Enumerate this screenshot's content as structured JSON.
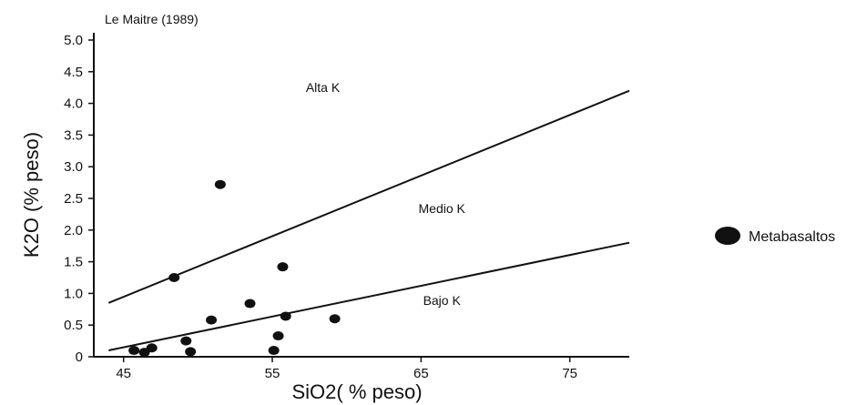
{
  "chart_data": {
    "type": "scatter",
    "source_label": "Le Maitre (1989)",
    "xlabel": "SiO2( % peso)",
    "ylabel": "K2O (% peso)",
    "xlim": [
      43,
      79
    ],
    "ylim": [
      0,
      5.0
    ],
    "x_ticks": [
      45,
      55,
      65,
      75
    ],
    "y_ticks": [
      {
        "value": 0,
        "label": "0"
      },
      {
        "value": 0.5,
        "label": "0.5"
      },
      {
        "value": 1.0,
        "label": "1.0"
      },
      {
        "value": 1.5,
        "label": "1.5"
      },
      {
        "value": 2.0,
        "label": "2.0"
      },
      {
        "value": 2.5,
        "label": "2.5"
      },
      {
        "value": 3.0,
        "label": "3.0"
      },
      {
        "value": 3.5,
        "label": "3.5"
      },
      {
        "value": 4.0,
        "label": "4.0"
      },
      {
        "value": 4.5,
        "label": "4.5"
      },
      {
        "value": 5.0,
        "label": "5.0"
      }
    ],
    "boundaries": [
      {
        "x": [
          44,
          79
        ],
        "y": [
          0.1,
          1.8
        ]
      },
      {
        "x": [
          44,
          79
        ],
        "y": [
          0.85,
          4.2
        ]
      }
    ],
    "regions": [
      {
        "label": "Alta K",
        "x": 58.4,
        "y": 4.18
      },
      {
        "label": "Medio K",
        "x": 66.4,
        "y": 2.27
      },
      {
        "label": "Bajo K",
        "x": 66.4,
        "y": 0.82
      }
    ],
    "series": [
      {
        "name": "Metabasaltos",
        "points": [
          [
            45.7,
            0.1
          ],
          [
            46.4,
            0.07
          ],
          [
            46.9,
            0.14
          ],
          [
            48.4,
            1.25
          ],
          [
            49.2,
            0.25
          ],
          [
            49.5,
            0.08
          ],
          [
            50.9,
            0.58
          ],
          [
            51.5,
            2.72
          ],
          [
            53.5,
            0.84
          ],
          [
            55.1,
            0.1
          ],
          [
            55.4,
            0.33
          ],
          [
            55.7,
            1.42
          ],
          [
            55.9,
            0.64
          ],
          [
            59.2,
            0.6
          ]
        ]
      }
    ],
    "grid": false,
    "legend_position": "right"
  }
}
